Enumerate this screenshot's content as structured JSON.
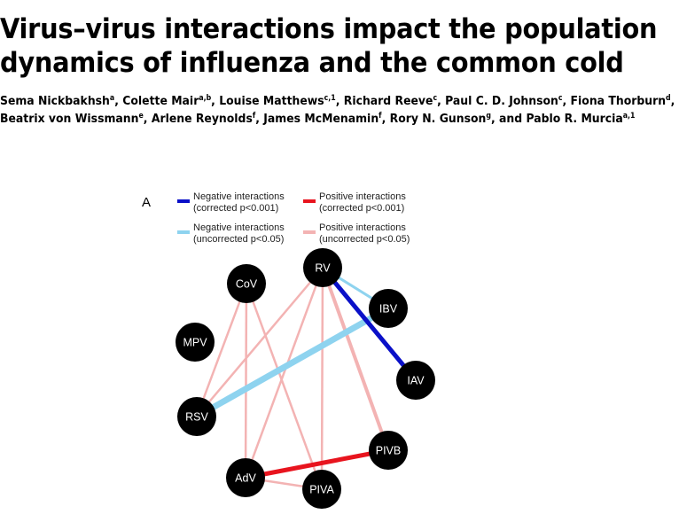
{
  "paper": {
    "title_line1": "Virus–virus interactions impact the population",
    "title_line2": "dynamics of influenza and the common cold",
    "authors": [
      [
        {
          "name": "Sema Nickbakhsh",
          "aff": "a",
          "sep": ", "
        },
        {
          "name": "Colette Mair",
          "aff": "a,b",
          "sep": ", "
        },
        {
          "name": "Louise Matthews",
          "aff": "c,1",
          "sep": ", "
        },
        {
          "name": "Richard Reeve",
          "aff": "c",
          "sep": ", "
        },
        {
          "name": "Paul C. D. Johnson",
          "aff": "c",
          "sep": ", "
        },
        {
          "name": "Fiona Thorburn",
          "aff": "d",
          "sep": ","
        }
      ],
      [
        {
          "name": "Beatrix von Wissmann",
          "aff": "e",
          "sep": ", "
        },
        {
          "name": "Arlene Reynolds",
          "aff": "f",
          "sep": ", "
        },
        {
          "name": "James McMenamin",
          "aff": "f",
          "sep": ", "
        },
        {
          "name": "Rory N. Gunson",
          "aff": "g",
          "sep": ", and "
        },
        {
          "name": "Pablo R. Murcia",
          "aff": "a,1",
          "sep": ""
        }
      ]
    ]
  },
  "figure": {
    "panel_label": "A",
    "legend": [
      {
        "line1": "Negative interactions",
        "line2": "(corrected p<0.001)",
        "color": "#0a10c8"
      },
      {
        "line1": "Positive interactions",
        "line2": "(corrected p<0.001)",
        "color": "#e8141e"
      },
      {
        "line1": "Negative interactions",
        "line2": "(uncorrected p<0.05)",
        "color": "#8ed3ef"
      },
      {
        "line1": "Positive interactions",
        "line2": "(uncorrected p<0.05)",
        "color": "#f3b3b3"
      }
    ],
    "chart_data": {
      "type": "network",
      "nodes": [
        "RV",
        "CoV",
        "MPV",
        "RSV",
        "AdV",
        "PIVA",
        "PIVB",
        "IAV",
        "IBV"
      ],
      "edges": [
        {
          "source": "RV",
          "target": "IBV",
          "type": "negative-uncorrected"
        },
        {
          "source": "RV",
          "target": "IAV",
          "type": "negative-corrected"
        },
        {
          "source": "IBV",
          "target": "RSV",
          "type": "negative-uncorrected"
        },
        {
          "source": "AdV",
          "target": "PIVB",
          "type": "positive-corrected"
        },
        {
          "source": "CoV",
          "target": "RSV",
          "type": "positive-uncorrected"
        },
        {
          "source": "CoV",
          "target": "AdV",
          "type": "positive-uncorrected"
        },
        {
          "source": "CoV",
          "target": "PIVA",
          "type": "positive-uncorrected"
        },
        {
          "source": "RV",
          "target": "RSV",
          "type": "positive-uncorrected"
        },
        {
          "source": "RV",
          "target": "AdV",
          "type": "positive-uncorrected"
        },
        {
          "source": "RV",
          "target": "PIVA",
          "type": "positive-uncorrected"
        },
        {
          "source": "RV",
          "target": "PIVB",
          "type": "positive-uncorrected"
        },
        {
          "source": "AdV",
          "target": "PIVA",
          "type": "positive-uncorrected"
        }
      ]
    }
  }
}
